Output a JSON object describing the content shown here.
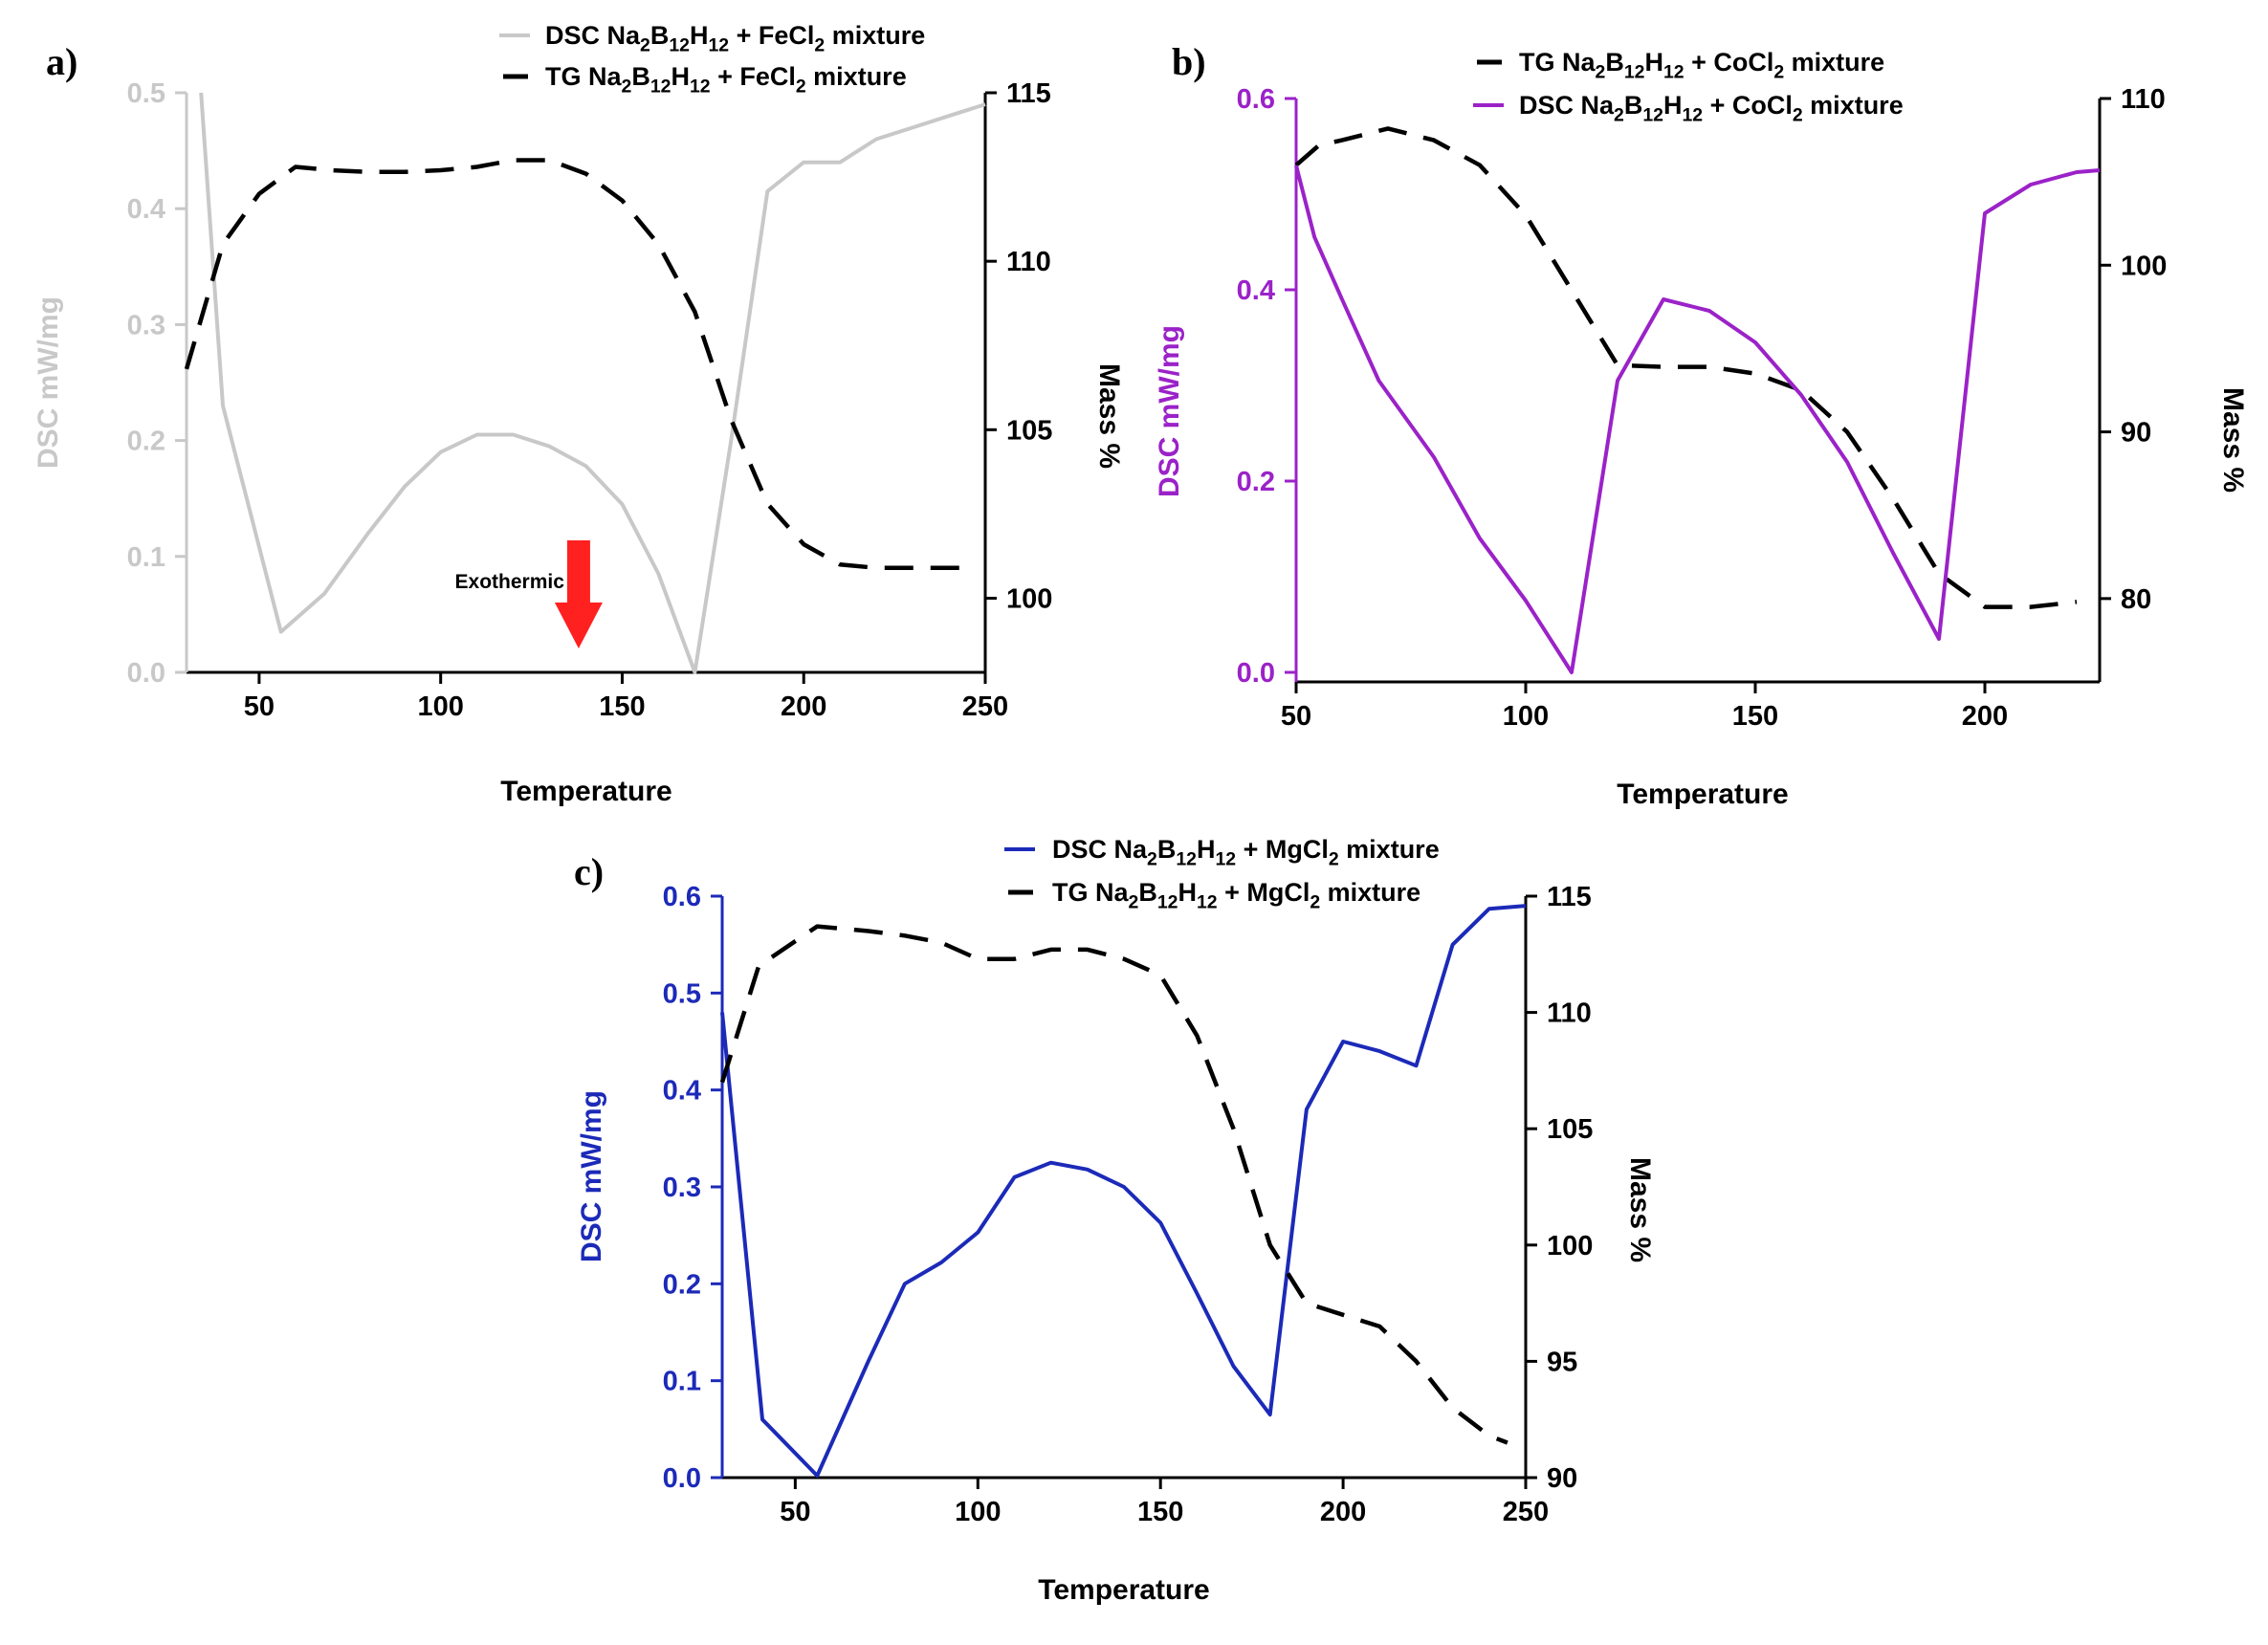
{
  "chart_data": [
    {
      "panel_label": "a)",
      "type": "line",
      "title": "",
      "xlabel": "Temperature",
      "ylabel_left": "DSC mW/mg",
      "ylabel_right": "Mass %",
      "xlim": [
        30,
        250
      ],
      "ylim_left": [
        0,
        0.5
      ],
      "ylim_right": [
        97.8,
        115
      ],
      "xticks": [
        50,
        100,
        150,
        200,
        250
      ],
      "yticks_left": [
        0.0,
        0.1,
        0.2,
        0.3,
        0.4,
        0.5
      ],
      "yticks_right": [
        100,
        105,
        110,
        115
      ],
      "left_axis_color": "#c8c8c8",
      "right_axis_color": "#000000",
      "legend_position": "top-right",
      "series": [
        {
          "name": "DSC Na2B12H12 + FeCl2 mixture",
          "axis": "left",
          "style": "solid",
          "color": "#c8c8c8",
          "x": [
            34,
            40,
            56,
            68,
            80,
            90,
            100,
            110,
            120,
            130,
            140,
            150,
            160,
            170,
            180,
            190,
            200,
            210,
            220,
            230,
            240,
            250
          ],
          "y": [
            0.5,
            0.23,
            0.035,
            0.068,
            0.12,
            0.16,
            0.19,
            0.205,
            0.205,
            0.195,
            0.178,
            0.145,
            0.085,
            0.0,
            0.2,
            0.415,
            0.44,
            0.44,
            0.46,
            0.47,
            0.48,
            0.49
          ]
        },
        {
          "name": "TG Na2B12H12 + FeCl2 mixture",
          "axis": "right",
          "style": "dashed",
          "color": "#000000",
          "x": [
            30,
            40,
            50,
            60,
            70,
            80,
            90,
            100,
            110,
            120,
            130,
            140,
            150,
            160,
            170,
            180,
            190,
            200,
            210,
            220,
            230,
            240,
            245
          ],
          "y": [
            106.8,
            110.5,
            112.0,
            112.8,
            112.7,
            112.65,
            112.65,
            112.7,
            112.8,
            113.0,
            113.0,
            112.6,
            111.8,
            110.5,
            108.5,
            105.3,
            102.8,
            101.6,
            101.0,
            100.9,
            100.9,
            100.9,
            100.9
          ]
        }
      ],
      "annotations": [
        {
          "text": "Exothermic",
          "arrow": "down",
          "arrow_color": "#ff2020",
          "arrow_x": 138
        }
      ]
    },
    {
      "panel_label": "b)",
      "type": "line",
      "title": "",
      "xlabel": "Temperature",
      "ylabel_left": "DSC mW/mg",
      "ylabel_right": "Mass %",
      "xlim": [
        50,
        225
      ],
      "ylim_left": [
        -0.01,
        0.6
      ],
      "ylim_right": [
        75,
        110
      ],
      "xticks": [
        50,
        100,
        150,
        200
      ],
      "yticks_left": [
        0.0,
        0.2,
        0.4,
        0.6
      ],
      "yticks_right": [
        80,
        90,
        100,
        110
      ],
      "left_axis_color": "#9b22c8",
      "right_axis_color": "#000000",
      "legend_position": "top-right",
      "series": [
        {
          "name": "TG Na2B12H12 + CoCl2 mixture",
          "axis": "right",
          "style": "dashed",
          "color": "#000000",
          "x": [
            50,
            55,
            60,
            70,
            80,
            90,
            100,
            110,
            120,
            130,
            140,
            150,
            160,
            170,
            180,
            190,
            200,
            210,
            220
          ],
          "y": [
            106.0,
            107.2,
            107.5,
            108.2,
            107.5,
            106.0,
            103.0,
            98.5,
            94.0,
            93.9,
            93.9,
            93.5,
            92.5,
            90.0,
            86.0,
            81.5,
            79.5,
            79.5,
            79.8
          ]
        },
        {
          "name": "DSC Na2B12H12 + CoCl2 mixture",
          "axis": "left",
          "style": "solid",
          "color": "#9b22c8",
          "x": [
            50,
            54,
            60,
            68,
            80,
            90,
            100,
            110,
            120,
            130,
            140,
            150,
            160,
            170,
            180,
            190,
            200,
            210,
            220,
            225
          ],
          "y": [
            0.53,
            0.455,
            0.39,
            0.305,
            0.225,
            0.14,
            0.075,
            0.0,
            0.305,
            0.39,
            0.378,
            0.345,
            0.29,
            0.22,
            0.125,
            0.035,
            0.48,
            0.51,
            0.523,
            0.525
          ]
        }
      ]
    },
    {
      "panel_label": "c)",
      "type": "line",
      "title": "",
      "xlabel": "Temperature",
      "ylabel_left": "DSC mW/mg",
      "ylabel_right": "Mass %",
      "xlim": [
        30,
        250
      ],
      "ylim_left": [
        0,
        0.6
      ],
      "ylim_right": [
        90,
        115
      ],
      "xticks": [
        50,
        100,
        150,
        200,
        250
      ],
      "yticks_left": [
        0.0,
        0.1,
        0.2,
        0.3,
        0.4,
        0.5,
        0.6
      ],
      "yticks_right": [
        90,
        95,
        100,
        105,
        110,
        115
      ],
      "left_axis_color": "#1c2ab8",
      "right_axis_color": "#000000",
      "legend_position": "top-right",
      "series": [
        {
          "name": "DSC Na2B12H12 + MgCl2 mixture",
          "axis": "left",
          "style": "solid",
          "color": "#1c2ab8",
          "x": [
            30,
            41,
            56,
            70,
            80,
            90,
            100,
            110,
            120,
            130,
            140,
            150,
            160,
            170,
            180,
            190,
            200,
            210,
            220,
            230,
            240,
            250
          ],
          "y": [
            0.48,
            0.06,
            0.002,
            0.12,
            0.2,
            0.222,
            0.253,
            0.31,
            0.325,
            0.318,
            0.3,
            0.263,
            0.19,
            0.115,
            0.065,
            0.38,
            0.45,
            0.44,
            0.425,
            0.55,
            0.587,
            0.59
          ]
        },
        {
          "name": "TG Na2B12H12 + MgCl2 mixture",
          "axis": "right",
          "style": "dashed",
          "color": "#000000",
          "x": [
            30,
            40,
            56,
            70,
            80,
            90,
            100,
            110,
            120,
            130,
            140,
            150,
            160,
            170,
            180,
            190,
            200,
            210,
            220,
            230,
            240,
            245
          ],
          "y": [
            107.0,
            112.0,
            113.7,
            113.5,
            113.3,
            113.0,
            112.3,
            112.3,
            112.7,
            112.7,
            112.3,
            111.6,
            109.0,
            105.0,
            100.0,
            97.5,
            97.0,
            96.5,
            95.0,
            93.0,
            91.8,
            91.5
          ]
        }
      ]
    }
  ]
}
